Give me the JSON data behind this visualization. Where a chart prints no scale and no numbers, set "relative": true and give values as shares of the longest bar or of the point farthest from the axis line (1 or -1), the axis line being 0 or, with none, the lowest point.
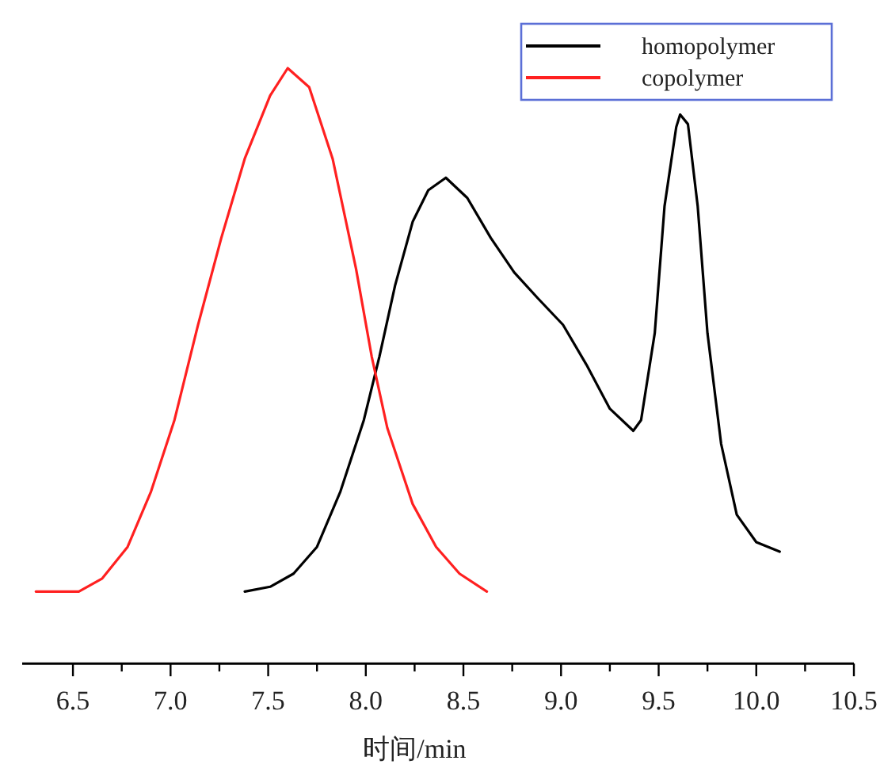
{
  "chart_data": {
    "type": "line",
    "relative": true,
    "xlabel": "时间/min",
    "legend": "top right",
    "grid": false,
    "line_style": "solid",
    "xlim": [
      6.24,
      10.5
    ],
    "xticks": [
      {
        "value": 6.5,
        "label": "6.5"
      },
      {
        "value": 6.75,
        "label": null
      },
      {
        "value": 7,
        "label": "7.0"
      },
      {
        "value": 7.25,
        "label": null
      },
      {
        "value": 7.5,
        "label": "7.5"
      },
      {
        "value": 7.75,
        "label": null
      },
      {
        "value": 8,
        "label": "8.0"
      },
      {
        "value": 8.25,
        "label": null
      },
      {
        "value": 8.5,
        "label": "8.5"
      },
      {
        "value": 8.75,
        "label": null
      },
      {
        "value": 9,
        "label": "9.0"
      },
      {
        "value": 9.25,
        "label": null
      },
      {
        "value": 9.5,
        "label": "9.5"
      },
      {
        "value": 9.75,
        "label": null
      },
      {
        "value": 10,
        "label": "10.0"
      },
      {
        "value": 10.25,
        "label": null
      },
      {
        "value": 10.5,
        "label": "10.5"
      }
    ],
    "series": [
      {
        "name": "homopolymer",
        "color": "#000000",
        "x": [
          7.38,
          7.51,
          7.63,
          7.75,
          7.87,
          7.99,
          8.07,
          8.15,
          8.24,
          8.32,
          8.41,
          8.52,
          8.64,
          8.76,
          8.88,
          9.01,
          9.13,
          9.25,
          9.37,
          9.41,
          9.48,
          9.53,
          9.59,
          9.61,
          9.65,
          9.7,
          9.75,
          9.82,
          9.9,
          10.0,
          10.12
        ],
        "values": [
          0.121,
          0.129,
          0.151,
          0.196,
          0.289,
          0.409,
          0.516,
          0.635,
          0.742,
          0.795,
          0.816,
          0.782,
          0.715,
          0.657,
          0.614,
          0.569,
          0.502,
          0.428,
          0.391,
          0.409,
          0.555,
          0.768,
          0.901,
          0.922,
          0.906,
          0.768,
          0.555,
          0.369,
          0.25,
          0.204,
          0.188
        ]
      },
      {
        "name": "copolymer",
        "color": "#ff2020",
        "x": [
          6.31,
          6.53,
          6.65,
          6.78,
          6.9,
          7.02,
          7.14,
          7.26,
          7.38,
          7.51,
          7.6,
          7.71,
          7.83,
          7.95,
          8.03,
          8.11,
          8.24,
          8.36,
          8.48,
          8.62
        ],
        "values": [
          0.121,
          0.121,
          0.143,
          0.196,
          0.289,
          0.409,
          0.568,
          0.715,
          0.848,
          0.954,
          1.0,
          0.968,
          0.848,
          0.663,
          0.516,
          0.396,
          0.268,
          0.196,
          0.151,
          0.121
        ]
      }
    ]
  }
}
